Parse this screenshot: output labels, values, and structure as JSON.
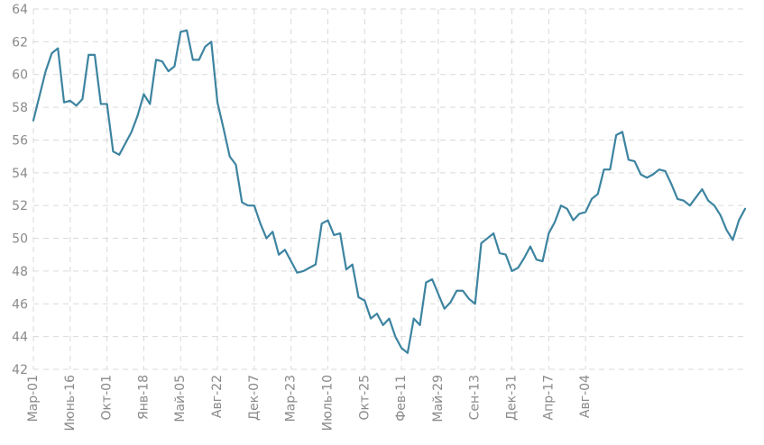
{
  "chart_data": {
    "type": "line",
    "title": "",
    "xlabel": "",
    "ylabel": "",
    "ylim": [
      42,
      64
    ],
    "y_ticks": [
      42,
      44,
      46,
      48,
      50,
      52,
      54,
      56,
      58,
      60,
      62,
      64
    ],
    "y_tick_labels": [
      "42",
      "44",
      "46",
      "48",
      "50",
      "52",
      "54",
      "56",
      "58",
      "60",
      "62",
      "64"
    ],
    "grid": true,
    "legend": "none",
    "line_color": "#3d84a0",
    "x_ticks": [
      {
        "label": "Мар-01",
        "index": 0
      },
      {
        "label": "Июнь-16",
        "index": 6
      },
      {
        "label": "Окт-01",
        "index": 12
      },
      {
        "label": "Янв-18",
        "index": 18
      },
      {
        "label": "Май-05",
        "index": 24
      },
      {
        "label": "Авг-22",
        "index": 30
      },
      {
        "label": "Дек-07",
        "index": 36
      },
      {
        "label": "Мар-23",
        "index": 42
      },
      {
        "label": "Июль-10",
        "index": 48
      },
      {
        "label": "Окт-25",
        "index": 54
      },
      {
        "label": "Фев-11",
        "index": 60
      },
      {
        "label": "Май-29",
        "index": 66
      },
      {
        "label": "Сен-13",
        "index": 72
      },
      {
        "label": "Дек-31",
        "index": 78
      },
      {
        "label": "Апр-17",
        "index": 84
      },
      {
        "label": "Авг-04",
        "index": 90
      }
    ],
    "series": [
      {
        "values": [
          57.2,
          58.7,
          60.2,
          61.3,
          61.6,
          58.3,
          58.4,
          58.1,
          58.5,
          61.2,
          61.2,
          58.2,
          58.2,
          55.3,
          55.1,
          55.8,
          56.5,
          57.5,
          58.8,
          58.2,
          60.9,
          60.8,
          60.2,
          60.5,
          62.6,
          62.7,
          60.9,
          60.9,
          61.7,
          62.0,
          58.3,
          56.7,
          55.0,
          54.5,
          52.2,
          52.0,
          52.0,
          50.9,
          50.0,
          50.4,
          49.0,
          49.3,
          48.6,
          47.9,
          48.0,
          48.2,
          48.4,
          50.9,
          51.1,
          50.2,
          50.3,
          48.1,
          48.4,
          46.4,
          46.2,
          45.1,
          45.4,
          44.7,
          45.1,
          44.0,
          43.3,
          43.0,
          45.1,
          44.7,
          47.3,
          47.5,
          46.6,
          45.7,
          46.1,
          46.8,
          46.8,
          46.3,
          46.0,
          49.7,
          50.0,
          50.3,
          49.1,
          49.0,
          48.0,
          48.2,
          48.8,
          49.5,
          48.7,
          48.6,
          50.3,
          51.0,
          52.0,
          51.8,
          51.1,
          51.5,
          51.6,
          52.4,
          52.7,
          54.2,
          54.2,
          56.3,
          56.5,
          54.8,
          54.7,
          53.9,
          53.7,
          53.9,
          54.2,
          54.1,
          53.3,
          52.4,
          52.3,
          52.0,
          52.5,
          53.0,
          52.3,
          52.0,
          51.4,
          50.5,
          49.9,
          51.1,
          51.8
        ]
      }
    ]
  }
}
